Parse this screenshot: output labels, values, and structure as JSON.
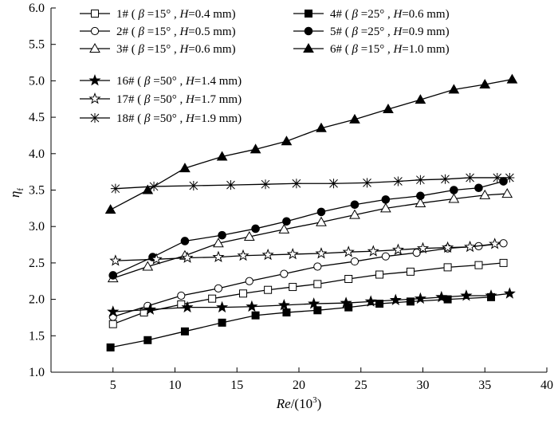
{
  "chart_data": {
    "type": "line",
    "title": "",
    "xlabel": "Re/(10^3)",
    "xlabel_main": "Re",
    "xlabel_unit": "/(10",
    "xlabel_exp": "3",
    "xlabel_close": ")",
    "ylabel": "ηf",
    "ylabel_main": "η",
    "ylabel_sub": "f",
    "xlim": [
      0,
      40
    ],
    "ylim": [
      1.0,
      6.0
    ],
    "xticks": [
      5,
      10,
      15,
      20,
      25,
      30,
      35,
      40
    ],
    "xtick_labels": [
      "5",
      "10",
      "15",
      "20",
      "25",
      "30",
      "35",
      "40"
    ],
    "yticks": [
      1.0,
      1.5,
      2.0,
      2.5,
      3.0,
      3.5,
      4.0,
      4.5,
      5.0,
      5.5,
      6.0
    ],
    "ytick_labels": [
      "1.0",
      "1.5",
      "2.0",
      "2.5",
      "3.0",
      "3.5",
      "4.0",
      "4.5",
      "5.0",
      "5.5",
      "6.0"
    ],
    "grid": false,
    "legend_position": "top-left",
    "series": [
      {
        "name": "1#",
        "beta": "15°",
        "H": "0.4 mm",
        "marker": "open-square",
        "x": [
          5.0,
          7.5,
          10.5,
          13.0,
          15.5,
          17.5,
          19.5,
          21.5,
          24.0,
          26.5,
          29.0,
          32.0,
          34.5,
          36.5
        ],
        "y": [
          1.66,
          1.82,
          1.93,
          2.01,
          2.08,
          2.13,
          2.17,
          2.21,
          2.28,
          2.34,
          2.38,
          2.44,
          2.47,
          2.5
        ]
      },
      {
        "name": "2#",
        "beta": "15°",
        "H": "0.5 mm",
        "marker": "open-circle",
        "x": [
          5.0,
          7.8,
          10.5,
          13.5,
          16.0,
          18.8,
          21.5,
          24.5,
          27.0,
          29.5,
          32.0,
          34.5,
          36.5
        ],
        "y": [
          1.76,
          1.91,
          2.05,
          2.15,
          2.25,
          2.35,
          2.45,
          2.52,
          2.59,
          2.64,
          2.7,
          2.73,
          2.77
        ]
      },
      {
        "name": "3#",
        "beta": "15°",
        "H": "0.6 mm",
        "marker": "open-triangle",
        "x": [
          5.0,
          7.8,
          10.8,
          13.5,
          16.0,
          18.8,
          21.8,
          24.5,
          27.0,
          29.8,
          32.5,
          35.0,
          36.8
        ],
        "y": [
          2.29,
          2.45,
          2.6,
          2.77,
          2.86,
          2.96,
          3.06,
          3.16,
          3.25,
          3.32,
          3.38,
          3.43,
          3.45
        ]
      },
      {
        "name": "4#",
        "beta": "25°",
        "H": "0.6 mm",
        "marker": "filled-square",
        "x": [
          4.8,
          7.8,
          10.8,
          13.8,
          16.5,
          19.0,
          21.5,
          24.0,
          26.5,
          29.0,
          32.0,
          35.5
        ],
        "y": [
          1.34,
          1.44,
          1.56,
          1.68,
          1.78,
          1.82,
          1.85,
          1.89,
          1.94,
          1.97,
          2.0,
          2.03
        ]
      },
      {
        "name": "5#",
        "beta": "25°",
        "H": "0.9 mm",
        "marker": "filled-circle",
        "x": [
          5.0,
          8.2,
          10.8,
          13.8,
          16.5,
          19.0,
          21.8,
          24.5,
          27.0,
          29.8,
          32.5,
          34.5,
          36.5
        ],
        "y": [
          2.33,
          2.58,
          2.8,
          2.88,
          2.97,
          3.07,
          3.2,
          3.3,
          3.37,
          3.42,
          3.5,
          3.53,
          3.62
        ]
      },
      {
        "name": "6#",
        "beta": "15°",
        "H": "1.0 mm",
        "marker": "filled-triangle",
        "x": [
          4.8,
          7.8,
          10.8,
          13.8,
          16.5,
          19.0,
          21.8,
          24.5,
          27.2,
          29.8,
          32.5,
          35.0,
          37.2
        ],
        "y": [
          3.23,
          3.5,
          3.8,
          3.96,
          4.06,
          4.17,
          4.35,
          4.47,
          4.61,
          4.74,
          4.88,
          4.95,
          5.02
        ]
      },
      {
        "name": "16#",
        "beta": "50°",
        "H": "1.4 mm",
        "marker": "filled-star",
        "x": [
          5.0,
          8.0,
          11.0,
          13.8,
          16.2,
          18.8,
          21.2,
          23.8,
          25.8,
          27.8,
          29.8,
          31.5,
          33.5,
          35.5,
          37.0
        ],
        "y": [
          1.83,
          1.86,
          1.89,
          1.89,
          1.9,
          1.92,
          1.94,
          1.95,
          1.97,
          1.99,
          2.01,
          2.03,
          2.05,
          2.05,
          2.08
        ]
      },
      {
        "name": "17#",
        "beta": "50°",
        "H": "1.7 mm",
        "marker": "open-star",
        "x": [
          5.2,
          8.5,
          11.0,
          13.5,
          15.5,
          17.5,
          19.5,
          21.8,
          24.0,
          26.0,
          28.0,
          30.0,
          32.0,
          33.8,
          35.8
        ],
        "y": [
          2.53,
          2.55,
          2.57,
          2.58,
          2.6,
          2.61,
          2.62,
          2.63,
          2.65,
          2.66,
          2.68,
          2.7,
          2.71,
          2.72,
          2.76
        ]
      },
      {
        "name": "18#",
        "beta": "50°",
        "H": "1.9 mm",
        "marker": "asterisk",
        "x": [
          5.2,
          8.3,
          11.5,
          14.5,
          17.3,
          19.8,
          22.8,
          25.5,
          28.0,
          29.8,
          31.8,
          33.8,
          36.0,
          37.0
        ],
        "y": [
          3.52,
          3.55,
          3.56,
          3.57,
          3.58,
          3.59,
          3.59,
          3.6,
          3.62,
          3.64,
          3.65,
          3.67,
          3.67,
          3.67
        ]
      }
    ]
  }
}
